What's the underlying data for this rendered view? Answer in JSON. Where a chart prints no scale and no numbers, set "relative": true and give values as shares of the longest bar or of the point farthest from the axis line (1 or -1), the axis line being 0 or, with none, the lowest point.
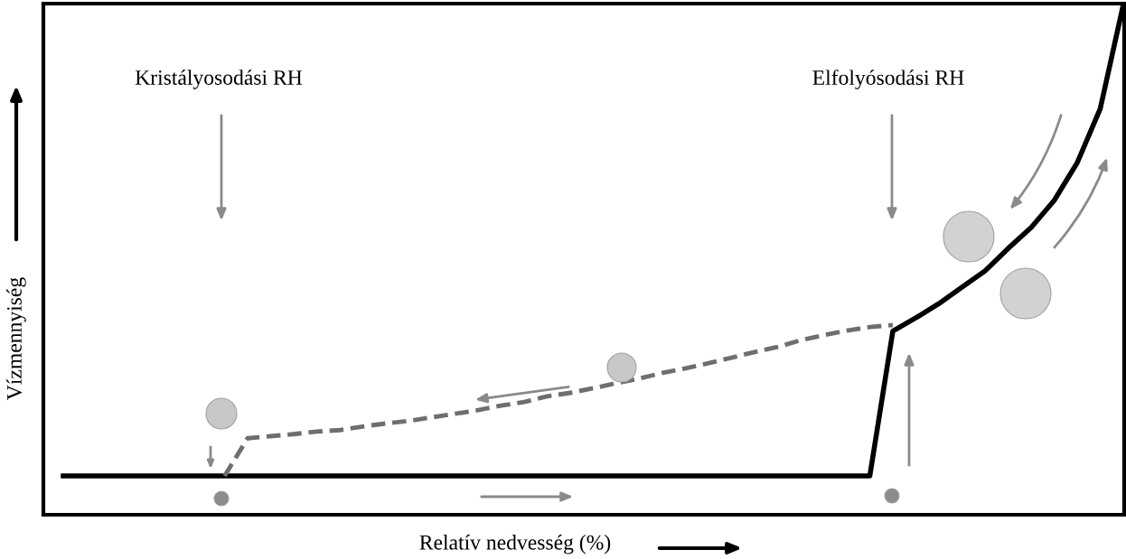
{
  "chart_data": {
    "type": "line",
    "relative": true,
    "xlabel": "Relatív nedvesség (%)",
    "ylabel": "Vízmennyiség",
    "annotations": [
      "Kristályosodási RH",
      "Elfolyósodási RH"
    ],
    "categories": [
      null,
      null,
      null,
      null,
      null,
      null,
      null,
      null,
      null,
      null,
      null,
      null,
      null,
      null,
      null,
      null,
      null,
      null,
      null,
      null,
      null,
      null,
      null,
      null,
      null,
      null,
      null,
      null,
      null,
      null,
      null,
      null,
      null,
      null,
      null,
      null,
      null,
      null,
      null,
      null,
      null,
      null,
      null,
      null,
      null,
      null,
      null
    ],
    "series": [
      {
        "color": "#000000",
        "line_style": "solid",
        "values": [
          0.076,
          0.076,
          0.076,
          0.076,
          0.076,
          0.076,
          0.076,
          0.076,
          0.076,
          0.076,
          0.076,
          0.076,
          0.076,
          0.076,
          0.076,
          0.076,
          0.076,
          0.076,
          0.076,
          0.076,
          0.076,
          0.076,
          0.076,
          0.076,
          0.076,
          0.076,
          0.076,
          0.076,
          0.076,
          0.076,
          0.076,
          0.076,
          0.076,
          0.076,
          0.076,
          0.076,
          0.36,
          0.386,
          0.414,
          0.446,
          0.478,
          0.522,
          0.563,
          0.616,
          0.69,
          0.796,
          1.0
        ]
      },
      {
        "color": "#6e6e6e",
        "line_style": "dashed",
        "values": [
          null,
          null,
          null,
          null,
          null,
          null,
          null,
          0.076,
          0.15,
          0.154,
          0.158,
          0.163,
          0.166,
          0.173,
          0.179,
          0.184,
          0.191,
          0.198,
          0.205,
          0.214,
          0.221,
          0.232,
          0.239,
          0.248,
          0.258,
          0.267,
          0.278,
          0.287,
          0.297,
          0.308,
          0.319,
          0.329,
          0.342,
          0.352,
          0.361,
          0.368,
          0.372,
          null,
          null,
          null,
          null,
          null,
          null,
          null,
          null,
          null,
          null
        ]
      }
    ],
    "grid": false,
    "marker": "none"
  }
}
